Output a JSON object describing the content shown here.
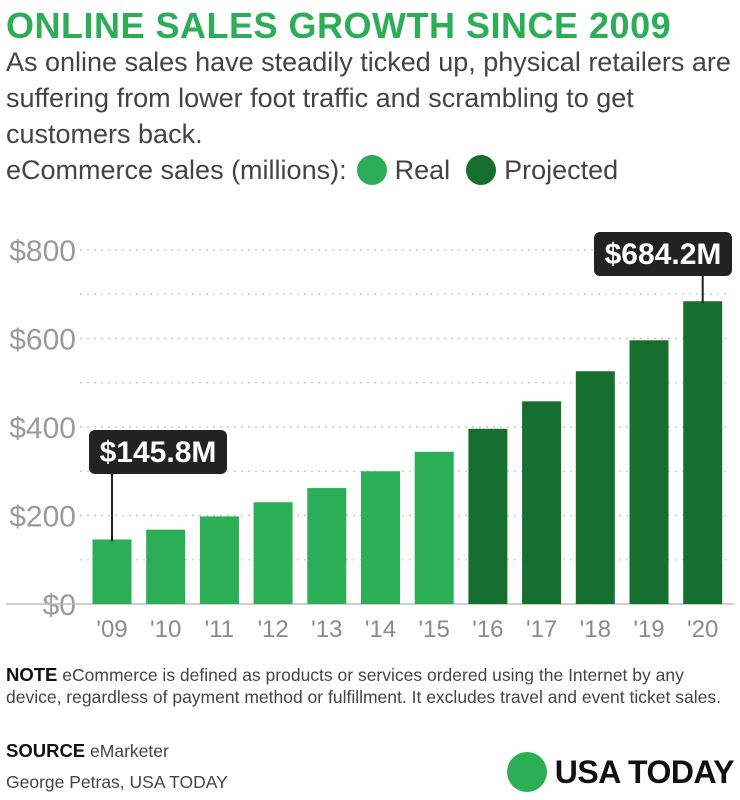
{
  "title": "ONLINE SALES GROWTH SINCE 2009",
  "subtitle": "As online sales have steadily ticked up, physical retailers are suffering from lower foot traffic and scrambling to get customers back.",
  "legend": {
    "prefix": "eCommerce sales (millions):",
    "items": [
      {
        "label": "Real",
        "color": "#2bae55"
      },
      {
        "label": "Projected",
        "color": "#166f2e"
      }
    ]
  },
  "chart_data": {
    "type": "bar",
    "categories": [
      "'09",
      "'10",
      "'11",
      "'12",
      "'13",
      "'14",
      "'15",
      "'16",
      "'17",
      "'18",
      "'19",
      "'20"
    ],
    "values": [
      145.8,
      168,
      198,
      230,
      262,
      300,
      344,
      396,
      458,
      526,
      596,
      684.2
    ],
    "status": [
      "Real",
      "Real",
      "Real",
      "Real",
      "Real",
      "Real",
      "Real",
      "Projected",
      "Projected",
      "Projected",
      "Projected",
      "Projected"
    ],
    "yticks": [
      "$0",
      "$200",
      "$400",
      "$600",
      "$800"
    ],
    "ytick_values": [
      0,
      200,
      400,
      600,
      800
    ],
    "ylim": [
      0,
      850
    ],
    "grid": true,
    "colors": {
      "Real": "#2bae55",
      "Projected": "#166f2e"
    },
    "annotations": [
      {
        "category": "'09",
        "text": "$145.8M"
      },
      {
        "category": "'20",
        "text": "$684.2M"
      }
    ]
  },
  "note": {
    "label": "NOTE",
    "text": "eCommerce is defined as products or services ordered using the Internet by any device, regardless of payment method or fulfillment. It excludes travel and event ticket sales."
  },
  "source": {
    "label": "SOURCE",
    "text": "eMarketer"
  },
  "byline": "George Petras, USA TODAY",
  "brand": "USA TODAY"
}
